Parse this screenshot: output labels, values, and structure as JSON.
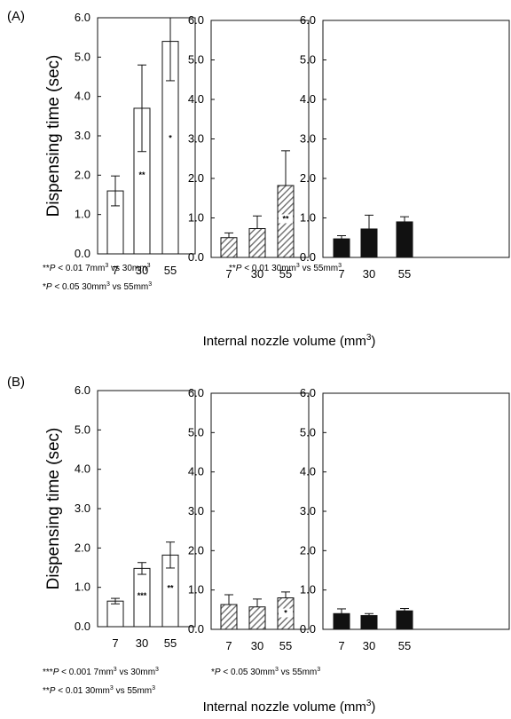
{
  "figure": {
    "panel_labels": [
      "(A)",
      "(B)"
    ],
    "ylabel": "Dispensing time (sec)",
    "xlabel_text": "Internal nozzle volume (mm",
    "xlabel_sup": "3",
    "xlabel_close": ")",
    "colors": {
      "open": "#ffffff",
      "hatched": "#a0a0a0",
      "solid": "#111111",
      "stroke": "#111111"
    }
  },
  "chart_data": [
    {
      "type": "bar",
      "panel": "(A)",
      "style": "open",
      "categories": [
        "7",
        "30",
        "55"
      ],
      "values": [
        1.6,
        3.7,
        5.4
      ],
      "errors": [
        0.38,
        1.1,
        1.0
      ],
      "significance": [
        "",
        "**",
        "*"
      ],
      "ylim": [
        0,
        6
      ],
      "yticks": [
        "0.0",
        "1.0",
        "2.0",
        "3.0",
        "4.0",
        "5.0",
        "6.0"
      ],
      "ylabel": "Dispensing time (sec)",
      "notes": [
        {
          "prefix": "**",
          "p": "P",
          "rest": " < 0.01  7mm",
          "sup": "3",
          "rest2": " vs 30mm",
          "sup2": "3"
        },
        {
          "prefix": "*",
          "p": "P",
          "rest": " < 0.05  30mm",
          "sup": "3",
          "rest2": " vs 55mm",
          "sup2": "3"
        }
      ]
    },
    {
      "type": "bar",
      "panel": "(A)",
      "style": "hatched",
      "categories": [
        "7",
        "30",
        "55"
      ],
      "values": [
        0.5,
        0.73,
        1.82
      ],
      "errors": [
        0.12,
        0.32,
        0.88
      ],
      "significance": [
        "",
        "",
        "**"
      ],
      "ylim": [
        0,
        6
      ],
      "yticks": [
        "0.0",
        "1.0",
        "2.0",
        "3.0",
        "4.0",
        "5.0",
        "6.0"
      ],
      "notes": [
        {
          "prefix": "**",
          "p": "P",
          "rest": " < 0.01  30mm",
          "sup": "3",
          "rest2": " vs 55mm",
          "sup2": "3"
        }
      ]
    },
    {
      "type": "bar",
      "panel": "(A)",
      "style": "solid",
      "categories": [
        "7",
        "30",
        "55"
      ],
      "values": [
        0.47,
        0.72,
        0.9
      ],
      "errors": [
        0.08,
        0.35,
        0.13
      ],
      "significance": [
        "",
        "",
        ""
      ],
      "ylim": [
        0,
        6
      ],
      "yticks": [
        "0.0",
        "1.0",
        "2.0",
        "3.0",
        "4.0",
        "5.0",
        "6.0"
      ],
      "notes": []
    },
    {
      "type": "bar",
      "panel": "(B)",
      "style": "open",
      "categories": [
        "7",
        "30",
        "55"
      ],
      "values": [
        0.65,
        1.48,
        1.82
      ],
      "errors": [
        0.07,
        0.15,
        0.33
      ],
      "significance": [
        "",
        "***",
        "**"
      ],
      "ylim": [
        0,
        6
      ],
      "yticks": [
        "0.0",
        "1.0",
        "2.0",
        "3.0",
        "4.0",
        "5.0",
        "6.0"
      ],
      "ylabel": "Dispensing time (sec)",
      "notes": [
        {
          "prefix": "***",
          "p": "P",
          "rest": " < 0.001  7mm",
          "sup": "3",
          "rest2": " vs 30mm",
          "sup2": "3"
        },
        {
          "prefix": "**",
          "p": "P",
          "rest": " < 0.01  30mm",
          "sup": "3",
          "rest2": " vs 55mm",
          "sup2": "3"
        }
      ]
    },
    {
      "type": "bar",
      "panel": "(B)",
      "style": "hatched",
      "categories": [
        "7",
        "30",
        "55"
      ],
      "values": [
        0.63,
        0.57,
        0.8
      ],
      "errors": [
        0.25,
        0.2,
        0.15
      ],
      "significance": [
        "",
        "",
        "*"
      ],
      "ylim": [
        0,
        6
      ],
      "yticks": [
        "0.0",
        "1.0",
        "2.0",
        "3.0",
        "4.0",
        "5.0",
        "6.0"
      ],
      "notes": [
        {
          "prefix": "*",
          "p": "P",
          "rest": " < 0.05  30mm",
          "sup": "3",
          "rest2": " vs 55mm",
          "sup2": "3"
        }
      ]
    },
    {
      "type": "bar",
      "panel": "(B)",
      "style": "solid",
      "categories": [
        "7",
        "30",
        "55"
      ],
      "values": [
        0.4,
        0.35,
        0.47
      ],
      "errors": [
        0.12,
        0.05,
        0.06
      ],
      "significance": [
        "",
        "",
        ""
      ],
      "ylim": [
        0,
        6
      ],
      "yticks": [
        "0.0",
        "1.0",
        "2.0",
        "3.0",
        "4.0",
        "5.0",
        "6.0"
      ],
      "notes": []
    }
  ]
}
